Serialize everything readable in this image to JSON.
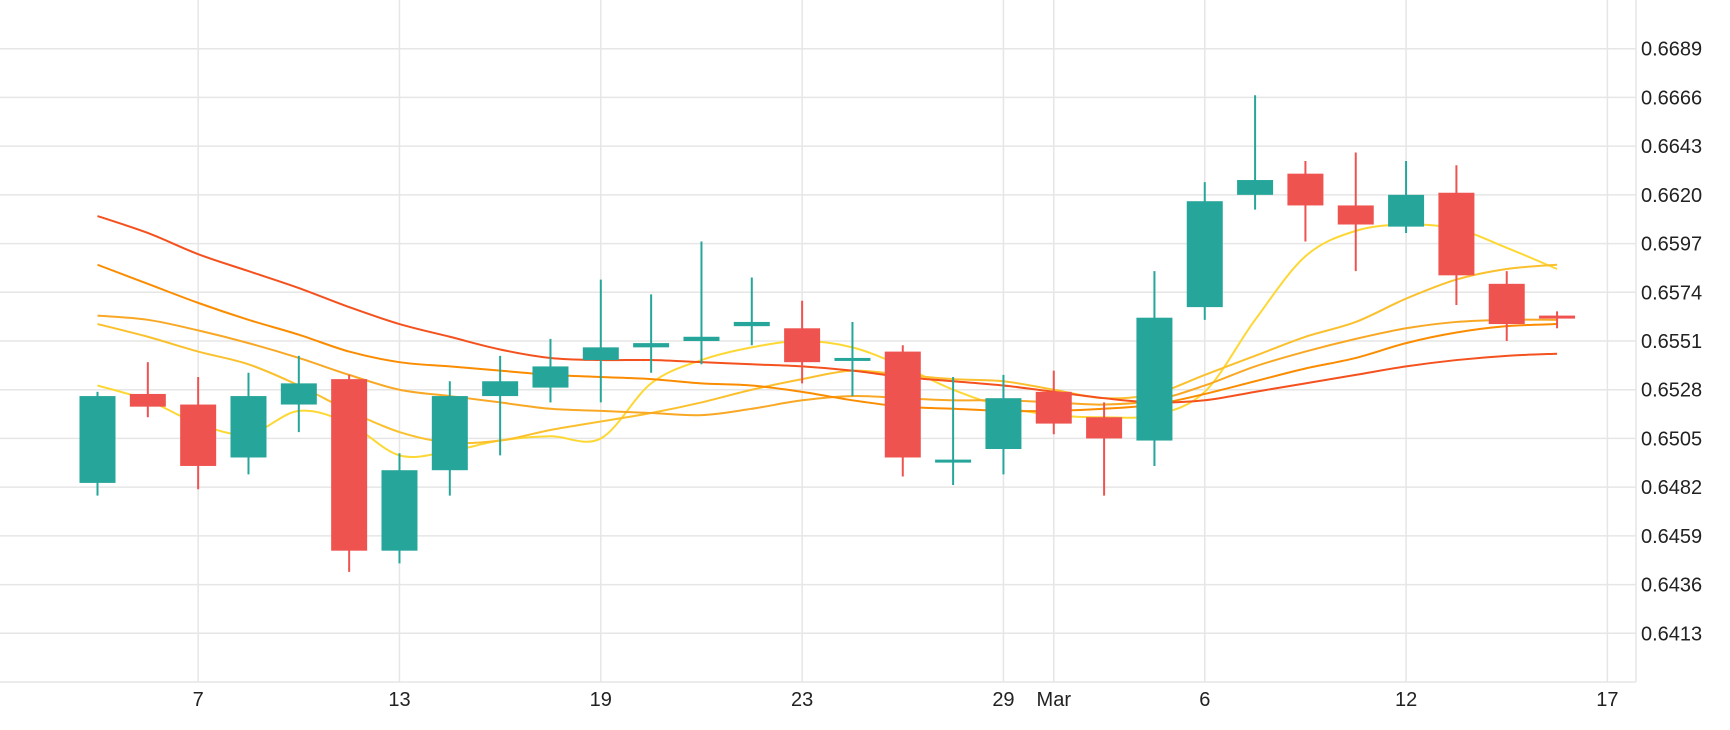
{
  "chart_data": {
    "type": "candlestick",
    "title": "",
    "xlabel": "",
    "ylabel": "",
    "ylim": [
      0.639,
      0.6712
    ],
    "y_ticks": [
      "0.6689",
      "0.6666",
      "0.6643",
      "0.6620",
      "0.6597",
      "0.6574",
      "0.6551",
      "0.6528",
      "0.6505",
      "0.6482",
      "0.6459",
      "0.6436",
      "0.6413"
    ],
    "x_ticks": [
      {
        "label": "7",
        "at": 2
      },
      {
        "label": "13",
        "at": 6
      },
      {
        "label": "19",
        "at": 10
      },
      {
        "label": "23",
        "at": 14
      },
      {
        "label": "29",
        "at": 18
      },
      {
        "label": "Mar",
        "at": 19
      },
      {
        "label": "6",
        "at": 22
      },
      {
        "label": "12",
        "at": 26
      },
      {
        "label": "17",
        "at": 30
      }
    ],
    "colors": {
      "up": "#26a69a",
      "down": "#ef5350",
      "grid": "#e6e6e6"
    },
    "candles": [
      {
        "o": 0.6484,
        "h": 0.6527,
        "l": 0.6478,
        "c": 0.6525
      },
      {
        "o": 0.6526,
        "h": 0.6541,
        "l": 0.6515,
        "c": 0.652
      },
      {
        "o": 0.6521,
        "h": 0.6534,
        "l": 0.6481,
        "c": 0.6492
      },
      {
        "o": 0.6496,
        "h": 0.6536,
        "l": 0.6488,
        "c": 0.6525
      },
      {
        "o": 0.6521,
        "h": 0.6544,
        "l": 0.6508,
        "c": 0.6531
      },
      {
        "o": 0.6533,
        "h": 0.6535,
        "l": 0.6442,
        "c": 0.6452
      },
      {
        "o": 0.6452,
        "h": 0.6498,
        "l": 0.6446,
        "c": 0.649
      },
      {
        "o": 0.649,
        "h": 0.6532,
        "l": 0.6478,
        "c": 0.6525
      },
      {
        "o": 0.6525,
        "h": 0.6544,
        "l": 0.6497,
        "c": 0.6532
      },
      {
        "o": 0.6529,
        "h": 0.6552,
        "l": 0.6522,
        "c": 0.6539
      },
      {
        "o": 0.6542,
        "h": 0.658,
        "l": 0.6522,
        "c": 0.6548
      },
      {
        "o": 0.6548,
        "h": 0.6573,
        "l": 0.6536,
        "c": 0.655
      },
      {
        "o": 0.6551,
        "h": 0.6598,
        "l": 0.654,
        "c": 0.6553
      },
      {
        "o": 0.6558,
        "h": 0.6581,
        "l": 0.6549,
        "c": 0.656
      },
      {
        "o": 0.6557,
        "h": 0.657,
        "l": 0.6531,
        "c": 0.6541
      },
      {
        "o": 0.6542,
        "h": 0.656,
        "l": 0.6525,
        "c": 0.6543
      },
      {
        "o": 0.6546,
        "h": 0.6549,
        "l": 0.6487,
        "c": 0.6496
      },
      {
        "o": 0.6495,
        "h": 0.6534,
        "l": 0.6483,
        "c": 0.6495
      },
      {
        "o": 0.65,
        "h": 0.6535,
        "l": 0.6488,
        "c": 0.6524
      },
      {
        "o": 0.6527,
        "h": 0.6537,
        "l": 0.6507,
        "c": 0.6512
      },
      {
        "o": 0.6515,
        "h": 0.6522,
        "l": 0.6478,
        "c": 0.6505
      },
      {
        "o": 0.6504,
        "h": 0.6584,
        "l": 0.6492,
        "c": 0.6562
      },
      {
        "o": 0.6567,
        "h": 0.6626,
        "l": 0.6561,
        "c": 0.6617
      },
      {
        "o": 0.662,
        "h": 0.6667,
        "l": 0.6613,
        "c": 0.6627
      },
      {
        "o": 0.663,
        "h": 0.6636,
        "l": 0.6598,
        "c": 0.6615
      },
      {
        "o": 0.6615,
        "h": 0.664,
        "l": 0.6584,
        "c": 0.6606
      },
      {
        "o": 0.6605,
        "h": 0.6636,
        "l": 0.6602,
        "c": 0.662
      },
      {
        "o": 0.6621,
        "h": 0.6634,
        "l": 0.6568,
        "c": 0.6582
      },
      {
        "o": 0.6578,
        "h": 0.6584,
        "l": 0.6551,
        "c": 0.6559
      },
      {
        "o": 0.6563,
        "h": 0.6565,
        "l": 0.6557,
        "c": 0.6562
      }
    ],
    "moving_averages": [
      {
        "color": "#fdd835",
        "values": [
          0.653,
          0.6523,
          0.6512,
          0.6507,
          0.6518,
          0.6512,
          0.6497,
          0.6499,
          0.6504,
          0.6506,
          0.6505,
          0.6531,
          0.6542,
          0.6548,
          0.6551,
          0.6548,
          0.6539,
          0.6528,
          0.652,
          0.6516,
          0.6515,
          0.6516,
          0.6527,
          0.6561,
          0.6591,
          0.6603,
          0.6606,
          0.6604,
          0.6595,
          0.6585
        ]
      },
      {
        "color": "#fbc02d",
        "values": [
          0.6559,
          0.6553,
          0.6546,
          0.654,
          0.653,
          0.6518,
          0.6508,
          0.6503,
          0.6504,
          0.6509,
          0.6513,
          0.6517,
          0.6522,
          0.6528,
          0.6533,
          0.6537,
          0.6535,
          0.6533,
          0.6532,
          0.6528,
          0.6524,
          0.6526,
          0.6535,
          0.6544,
          0.6553,
          0.656,
          0.6571,
          0.658,
          0.6585,
          0.6587
        ]
      },
      {
        "color": "#f9a825",
        "values": [
          0.6563,
          0.6561,
          0.6556,
          0.655,
          0.6543,
          0.6535,
          0.6528,
          0.6525,
          0.6522,
          0.6519,
          0.6518,
          0.6517,
          0.6516,
          0.6519,
          0.6523,
          0.6525,
          0.6524,
          0.6523,
          0.6523,
          0.6522,
          0.6521,
          0.6523,
          0.653,
          0.6539,
          0.6546,
          0.6552,
          0.6557,
          0.656,
          0.6561,
          0.6561
        ]
      },
      {
        "color": "#fb8c00",
        "values": [
          0.6587,
          0.6578,
          0.6569,
          0.6561,
          0.6554,
          0.6546,
          0.6541,
          0.6539,
          0.6537,
          0.6535,
          0.6534,
          0.6533,
          0.6531,
          0.653,
          0.6527,
          0.6523,
          0.652,
          0.6519,
          0.6518,
          0.6518,
          0.6519,
          0.6521,
          0.6526,
          0.6532,
          0.6538,
          0.6543,
          0.655,
          0.6555,
          0.6558,
          0.6559
        ]
      },
      {
        "color": "#f4511e",
        "values": [
          0.661,
          0.6602,
          0.6592,
          0.6584,
          0.6576,
          0.6567,
          0.6559,
          0.6553,
          0.6547,
          0.6543,
          0.6542,
          0.6542,
          0.6541,
          0.654,
          0.6539,
          0.6537,
          0.6534,
          0.6532,
          0.653,
          0.6527,
          0.6524,
          0.6522,
          0.6523,
          0.6527,
          0.6531,
          0.6535,
          0.6539,
          0.6542,
          0.6544,
          0.6545
        ]
      }
    ]
  }
}
